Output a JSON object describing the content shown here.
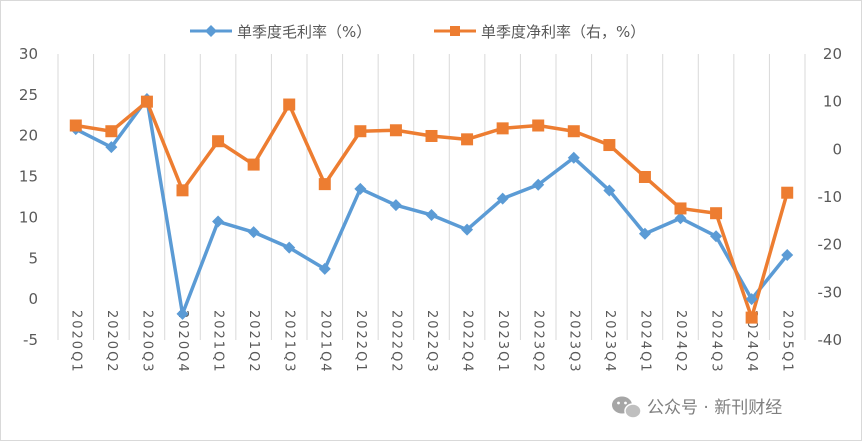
{
  "chart_data": {
    "type": "line",
    "categories": [
      "2020Q1",
      "2020Q2",
      "2020Q3",
      "2020Q4",
      "2021Q1",
      "2021Q2",
      "2021Q3",
      "2021Q4",
      "2022Q1",
      "2022Q2",
      "2022Q3",
      "2022Q4",
      "2023Q1",
      "2023Q2",
      "2023Q3",
      "2023Q4",
      "2024Q1",
      "2024Q2",
      "2024Q3",
      "2024Q4",
      "2025Q1"
    ],
    "series": [
      {
        "name": "单季度毛利率（%）",
        "axis": "left",
        "color": "#5b9bd5",
        "marker": "diamond",
        "values": [
          20.8,
          18.6,
          24.5,
          -1.8,
          9.5,
          8.2,
          6.3,
          3.7,
          13.5,
          11.5,
          10.3,
          8.5,
          12.3,
          14.0,
          17.3,
          13.3,
          8.0,
          9.9,
          7.7,
          0.0,
          5.4
        ]
      },
      {
        "name": "单季度净利率（右，%）",
        "axis": "right",
        "color": "#ed7d31",
        "marker": "square",
        "values": [
          5.0,
          3.8,
          10.0,
          -8.6,
          1.7,
          -3.2,
          9.4,
          -7.3,
          3.8,
          4.0,
          2.8,
          2.1,
          4.4,
          5.0,
          3.8,
          0.9,
          -5.8,
          -12.4,
          -13.4,
          -35.3,
          -9.1
        ]
      }
    ],
    "y_left": {
      "lim": [
        -5,
        30
      ],
      "ticks": [
        "30",
        "25",
        "20",
        "15",
        "10",
        "5",
        "0",
        "-5"
      ]
    },
    "y_right": {
      "lim": [
        -40,
        20
      ],
      "ticks": [
        "20",
        "10",
        "0",
        "-10",
        "-20",
        "-30",
        "-40"
      ]
    },
    "grid": "vertical",
    "legend_position": "top",
    "title": "",
    "xlabel": "",
    "ylabel": ""
  },
  "watermark": {
    "text": "公众号 · 新刊财经",
    "icon": "wechat-icon"
  }
}
